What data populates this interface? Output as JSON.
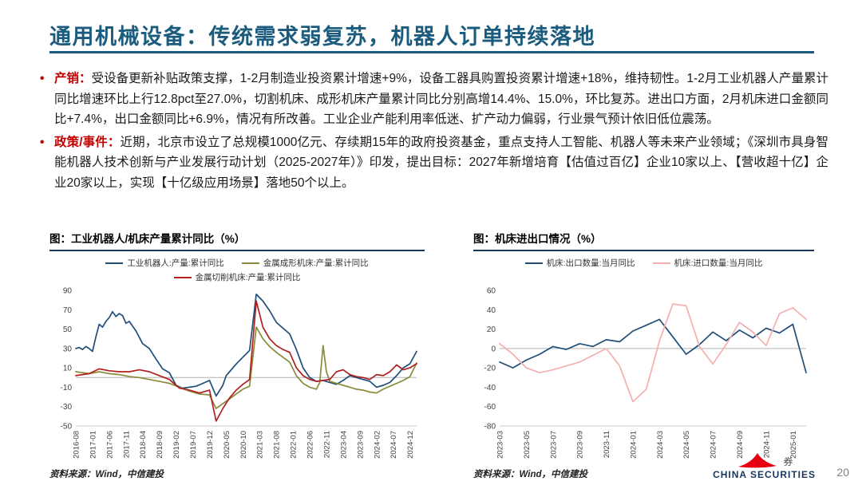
{
  "slide": {
    "title": "通用机械设备：传统需求弱复苏，机器人订单持续落地",
    "page_number": "20",
    "logo": {
      "text_cn": "券",
      "text_en": "CHINA SECURITIES"
    }
  },
  "colors": {
    "title_blue": "#1B5C7E",
    "rule_navy": "#17375E",
    "accent_red": "#C00000",
    "logo_red": "#E60012",
    "page_num_gray": "#808080"
  },
  "bullets": [
    {
      "marker": "•",
      "label": "产销：",
      "text": "受设备更新补贴政策支撑，1-2月制造业投资累计增速+9%，设备工器具购置投资累计增速+18%，维持韧性。1-2月工业机器人产量累计同比增速环比上行12.8pct至27.0%，切割机床、成形机床产量累计同比分别高增14.4%、15.0%，环比复苏。进出口方面，2月机床进口金额同比+7.4%，出口金额同比+6.9%，情况有所改善。工业企业产能利用率低迷、扩产动力偏弱，行业景气预计依旧低位震荡。"
    },
    {
      "marker": "•",
      "label": "政策/事件：",
      "text": "近期，北京市设立了总规模1000亿元、存续期15年的政府投资基金，重点支持人工智能、机器人等未来产业领域；《深圳市具身智能机器人技术创新与产业发展行动计划（2025-2027年）》印发，提出目标：2027年新增培育【估值过百亿】企业10家以上、【营收超十亿】企业20家以上，实现【十亿级应用场景】落地50个以上。"
    }
  ],
  "chart_data": [
    {
      "type": "line",
      "title": "图：工业机器人/机床产量累计同比（%）",
      "source": "资料来源：Wind，中信建投",
      "ylim": [
        -50,
        90
      ],
      "yticks": [
        90,
        70,
        50,
        30,
        10,
        -10,
        -30,
        -50
      ],
      "x_domain": [
        "2016-08",
        "2025-02"
      ],
      "xticks": [
        "2016-08",
        "2017-01",
        "2017-06",
        "2017-11",
        "2018-04",
        "2018-09",
        "2019-02",
        "2019-07",
        "2019-12",
        "2020-05",
        "2020-10",
        "2021-03",
        "2021-08",
        "2022-01",
        "2022-06",
        "2022-11",
        "2023-04",
        "2023-09",
        "2024-02",
        "2024-07",
        "2024-12"
      ],
      "grid": "zero-line only",
      "legend_position": "top",
      "series": [
        {
          "name": "工业机器人:产量:累计同比",
          "color": "#1F4E79",
          "points": [
            [
              "2016-08",
              30
            ],
            [
              "2016-09",
              31
            ],
            [
              "2016-10",
              29
            ],
            [
              "2016-11",
              32
            ],
            [
              "2016-12",
              30
            ],
            [
              "2017-01",
              27
            ],
            [
              "2017-02",
              42
            ],
            [
              "2017-03",
              55
            ],
            [
              "2017-04",
              52
            ],
            [
              "2017-05",
              58
            ],
            [
              "2017-06",
              62
            ],
            [
              "2017-07",
              68
            ],
            [
              "2017-08",
              63
            ],
            [
              "2017-09",
              66
            ],
            [
              "2017-10",
              64
            ],
            [
              "2017-11",
              56
            ],
            [
              "2017-12",
              58
            ],
            [
              "2018-02",
              48
            ],
            [
              "2018-04",
              35
            ],
            [
              "2018-06",
              30
            ],
            [
              "2018-08",
              19
            ],
            [
              "2018-10",
              9
            ],
            [
              "2018-12",
              5
            ],
            [
              "2019-02",
              -8
            ],
            [
              "2019-04",
              -11
            ],
            [
              "2019-06",
              -10
            ],
            [
              "2019-08",
              -9
            ],
            [
              "2019-10",
              -6
            ],
            [
              "2019-12",
              -3
            ],
            [
              "2020-02",
              -19
            ],
            [
              "2020-04",
              -8
            ],
            [
              "2020-05",
              2
            ],
            [
              "2020-08",
              14
            ],
            [
              "2020-10",
              21
            ],
            [
              "2020-12",
              28
            ],
            [
              "2021-02",
              86
            ],
            [
              "2021-04",
              79
            ],
            [
              "2021-06",
              69
            ],
            [
              "2021-08",
              57
            ],
            [
              "2021-10",
              51
            ],
            [
              "2021-12",
              45
            ],
            [
              "2022-02",
              29
            ],
            [
              "2022-04",
              10
            ],
            [
              "2022-06",
              0
            ],
            [
              "2022-08",
              -4
            ],
            [
              "2022-10",
              -3
            ],
            [
              "2022-12",
              -5
            ],
            [
              "2023-02",
              -7
            ],
            [
              "2023-04",
              -3
            ],
            [
              "2023-06",
              2
            ],
            [
              "2023-08",
              0
            ],
            [
              "2023-10",
              -2
            ],
            [
              "2023-12",
              -4
            ],
            [
              "2024-02",
              -10
            ],
            [
              "2024-04",
              -8
            ],
            [
              "2024-06",
              -5
            ],
            [
              "2024-08",
              2
            ],
            [
              "2024-10",
              10
            ],
            [
              "2024-12",
              14.2
            ],
            [
              "2025-02",
              27.0
            ]
          ]
        },
        {
          "name": "金属成形机床:产量:累计同比",
          "color": "#8A8A3A",
          "points": [
            [
              "2016-08",
              6
            ],
            [
              "2016-12",
              4
            ],
            [
              "2017-03",
              6
            ],
            [
              "2017-06",
              4
            ],
            [
              "2017-09",
              3
            ],
            [
              "2017-12",
              1
            ],
            [
              "2018-03",
              0
            ],
            [
              "2018-06",
              -2
            ],
            [
              "2018-09",
              -4
            ],
            [
              "2018-12",
              -6
            ],
            [
              "2019-03",
              -10
            ],
            [
              "2019-06",
              -14
            ],
            [
              "2019-09",
              -17
            ],
            [
              "2019-12",
              -18
            ],
            [
              "2020-02",
              -32
            ],
            [
              "2020-04",
              -27
            ],
            [
              "2020-06",
              -22
            ],
            [
              "2020-08",
              -17
            ],
            [
              "2020-10",
              -12
            ],
            [
              "2020-12",
              -9
            ],
            [
              "2021-02",
              52
            ],
            [
              "2021-04",
              40
            ],
            [
              "2021-06",
              32
            ],
            [
              "2021-08",
              26
            ],
            [
              "2021-10",
              21
            ],
            [
              "2021-12",
              16
            ],
            [
              "2022-02",
              2
            ],
            [
              "2022-04",
              -6
            ],
            [
              "2022-06",
              -10
            ],
            [
              "2022-08",
              -12
            ],
            [
              "2022-09",
              -5
            ],
            [
              "2022-10",
              33
            ],
            [
              "2022-11",
              6
            ],
            [
              "2022-12",
              -4
            ],
            [
              "2023-02",
              -6
            ],
            [
              "2023-04",
              -8
            ],
            [
              "2023-06",
              -10
            ],
            [
              "2023-08",
              -12
            ],
            [
              "2023-10",
              -13
            ],
            [
              "2023-12",
              -15
            ],
            [
              "2024-02",
              -16
            ],
            [
              "2024-04",
              -12
            ],
            [
              "2024-06",
              -9
            ],
            [
              "2024-08",
              -6
            ],
            [
              "2024-10",
              -3
            ],
            [
              "2024-12",
              1
            ],
            [
              "2025-02",
              15.0
            ]
          ]
        },
        {
          "name": "金属切削机床:产量:累计同比",
          "color": "#B02020",
          "points": [
            [
              "2016-08",
              2
            ],
            [
              "2016-12",
              4
            ],
            [
              "2017-03",
              9
            ],
            [
              "2017-06",
              7
            ],
            [
              "2017-09",
              6
            ],
            [
              "2017-12",
              6
            ],
            [
              "2018-03",
              8
            ],
            [
              "2018-06",
              6
            ],
            [
              "2018-09",
              2
            ],
            [
              "2018-12",
              -2
            ],
            [
              "2019-03",
              -11
            ],
            [
              "2019-06",
              -13
            ],
            [
              "2019-09",
              -16
            ],
            [
              "2019-12",
              -13
            ],
            [
              "2020-02",
              -45
            ],
            [
              "2020-04",
              -32
            ],
            [
              "2020-06",
              -21
            ],
            [
              "2020-08",
              -13
            ],
            [
              "2020-10",
              -7
            ],
            [
              "2020-12",
              -2
            ],
            [
              "2021-02",
              79
            ],
            [
              "2021-04",
              52
            ],
            [
              "2021-06",
              40
            ],
            [
              "2021-08",
              33
            ],
            [
              "2021-10",
              29
            ],
            [
              "2021-12",
              26
            ],
            [
              "2022-02",
              10
            ],
            [
              "2022-04",
              2
            ],
            [
              "2022-06",
              -2
            ],
            [
              "2022-08",
              -4
            ],
            [
              "2022-10",
              -3
            ],
            [
              "2022-12",
              -2
            ],
            [
              "2023-02",
              6
            ],
            [
              "2023-04",
              8
            ],
            [
              "2023-06",
              3
            ],
            [
              "2023-08",
              1
            ],
            [
              "2023-10",
              0
            ],
            [
              "2023-12",
              -2
            ],
            [
              "2024-02",
              3
            ],
            [
              "2024-04",
              2
            ],
            [
              "2024-06",
              6
            ],
            [
              "2024-08",
              13
            ],
            [
              "2024-10",
              8
            ],
            [
              "2024-12",
              10
            ],
            [
              "2025-02",
              14.4
            ]
          ]
        }
      ]
    },
    {
      "type": "line",
      "title": "图：机床进出口情况（%）",
      "source": "资料来源：Wind，中信建投",
      "ylim": [
        -80,
        60
      ],
      "yticks": [
        60,
        40,
        20,
        0,
        -20,
        -40,
        -60,
        -80
      ],
      "x_domain": [
        "2023-03",
        "2025-02"
      ],
      "xticks": [
        "2023-03",
        "2023-05",
        "2023-07",
        "2023-09",
        "2023-11",
        "2024-01",
        "2024-03",
        "2024-05",
        "2024-07",
        "2024-09",
        "2024-11",
        "2025-01"
      ],
      "grid": "zero-line only",
      "legend_position": "top",
      "series": [
        {
          "name": "机床:出口数量:当月同比",
          "color": "#1F4E79",
          "points": [
            [
              "2023-03",
              -14
            ],
            [
              "2023-04",
              -20
            ],
            [
              "2023-05",
              -12
            ],
            [
              "2023-06",
              -6
            ],
            [
              "2023-07",
              2
            ],
            [
              "2023-08",
              -1
            ],
            [
              "2023-09",
              5
            ],
            [
              "2023-10",
              2
            ],
            [
              "2023-11",
              9
            ],
            [
              "2023-12",
              7
            ],
            [
              "2024-01",
              18
            ],
            [
              "2024-02",
              24
            ],
            [
              "2024-03",
              30
            ],
            [
              "2024-04",
              12
            ],
            [
              "2024-05",
              -6
            ],
            [
              "2024-06",
              4
            ],
            [
              "2024-07",
              17
            ],
            [
              "2024-08",
              8
            ],
            [
              "2024-09",
              19
            ],
            [
              "2024-10",
              11
            ],
            [
              "2024-11",
              21
            ],
            [
              "2024-12",
              16
            ],
            [
              "2025-01",
              25
            ],
            [
              "2025-02",
              -25
            ]
          ]
        },
        {
          "name": "机床:进口数量:当月同比",
          "color": "#F4AFAF",
          "points": [
            [
              "2023-03",
              5
            ],
            [
              "2023-04",
              -6
            ],
            [
              "2023-05",
              -20
            ],
            [
              "2023-06",
              -25
            ],
            [
              "2023-07",
              -22
            ],
            [
              "2023-08",
              -18
            ],
            [
              "2023-09",
              -14
            ],
            [
              "2023-10",
              -7
            ],
            [
              "2023-11",
              0
            ],
            [
              "2023-12",
              -18
            ],
            [
              "2024-01",
              -55
            ],
            [
              "2024-02",
              -42
            ],
            [
              "2024-03",
              8
            ],
            [
              "2024-04",
              46
            ],
            [
              "2024-05",
              44
            ],
            [
              "2024-06",
              2
            ],
            [
              "2024-07",
              -16
            ],
            [
              "2024-08",
              4
            ],
            [
              "2024-09",
              27
            ],
            [
              "2024-10",
              17
            ],
            [
              "2024-11",
              3
            ],
            [
              "2024-12",
              36
            ],
            [
              "2025-01",
              42
            ],
            [
              "2025-02",
              30
            ]
          ]
        }
      ]
    }
  ]
}
